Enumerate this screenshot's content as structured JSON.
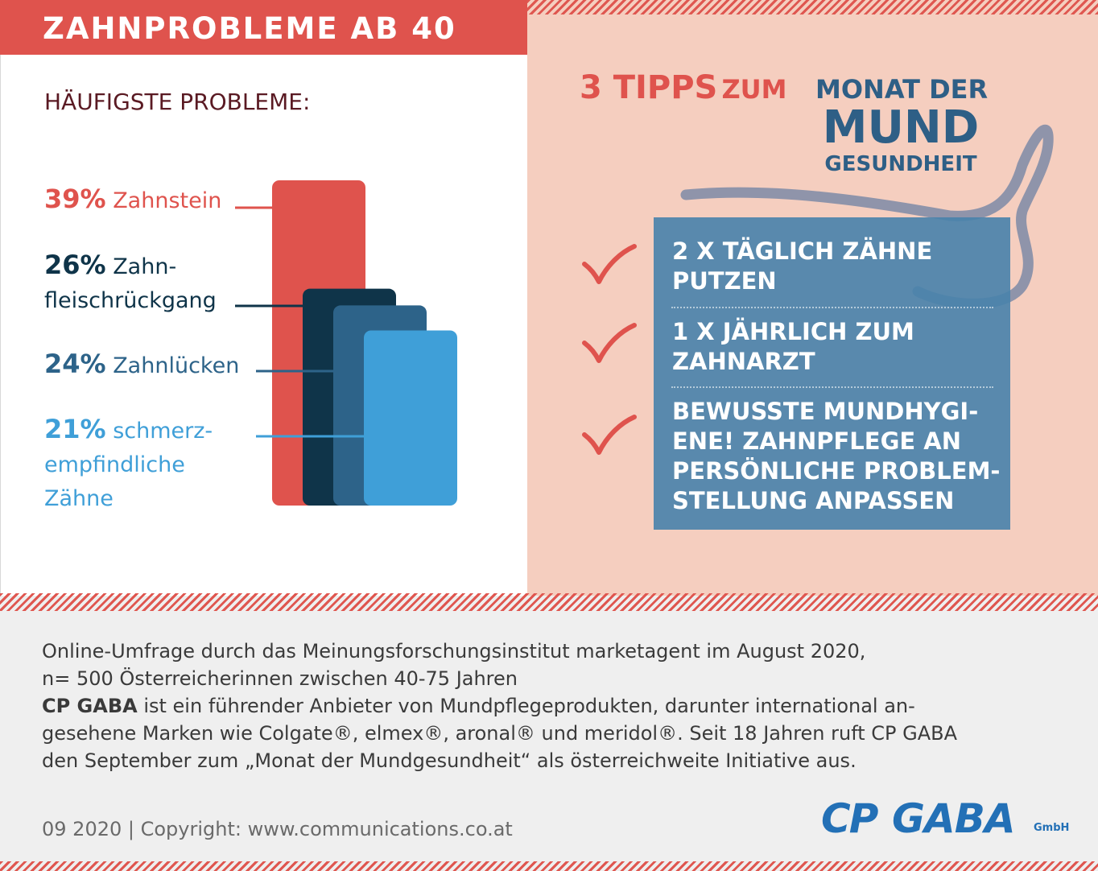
{
  "title": "ZAHNPROBLEME AB 40",
  "subhead": "HÄUFIGSTE PROBLEME:",
  "chart_data": {
    "type": "bar",
    "categories": [
      "Zahnstein",
      "Zahnfleischrückgang",
      "Zahnlücken",
      "schmerzempfindliche Zähne"
    ],
    "values": [
      39,
      26,
      24,
      21
    ],
    "colors": [
      "#df534d",
      "#0f3449",
      "#2d6389",
      "#3f9fd8"
    ],
    "labels": [
      {
        "pct": "39%",
        "line1": "Zahnstein",
        "line2": "",
        "line3": ""
      },
      {
        "pct": "26%",
        "line1": "Zahn-",
        "line2": "fleischrückgang",
        "line3": ""
      },
      {
        "pct": "24%",
        "line1": "Zahnlücken",
        "line2": "",
        "line3": ""
      },
      {
        "pct": "21%",
        "line1": "schmerz-",
        "line2": "empfindliche",
        "line3": "Zähne"
      }
    ]
  },
  "tips": {
    "heading_number": "3 TIPPS",
    "heading_word": "ZUM",
    "items": [
      "2 X TÄGLICH ZÄHNE\nPUTZEN",
      "1 X JÄHRLICH ZUM\nZAHNARZT",
      "BEWUSSTE MUNDHYGI-\nENE! ZAHNPFLEGE AN\nPERSÖNLICHE PROBLEM-\nSTELLUNG ANPASSEN"
    ]
  },
  "campaign_logo": {
    "line1": "MONAT DER",
    "line2": "MUND",
    "line3": "GESUNDHEIT"
  },
  "footer": {
    "line1": "Online-Umfrage durch das Meinungsforschungsinstitut marketagent im August 2020,",
    "line2": "n= 500 Österreicherinnen zwischen 40-75 Jahren",
    "line3_bold": "CP GABA",
    "line3_rest": " ist ein führender Anbieter von Mundpflegeprodukten, darunter international an-",
    "line4": "gesehene Marken wie Colgate®, elmex®, aronal® und meridol®. Seit 18 Jahren ruft CP GABA",
    "line5": "den September zum „Monat der Mundgesundheit“ als österreichweite Initiative aus.",
    "copyright": "09 2020  | Copyright: www.communications.co.at"
  },
  "brand_logo": {
    "text1": "CP",
    "text2": "GABA",
    "suffix": "GmbH"
  }
}
